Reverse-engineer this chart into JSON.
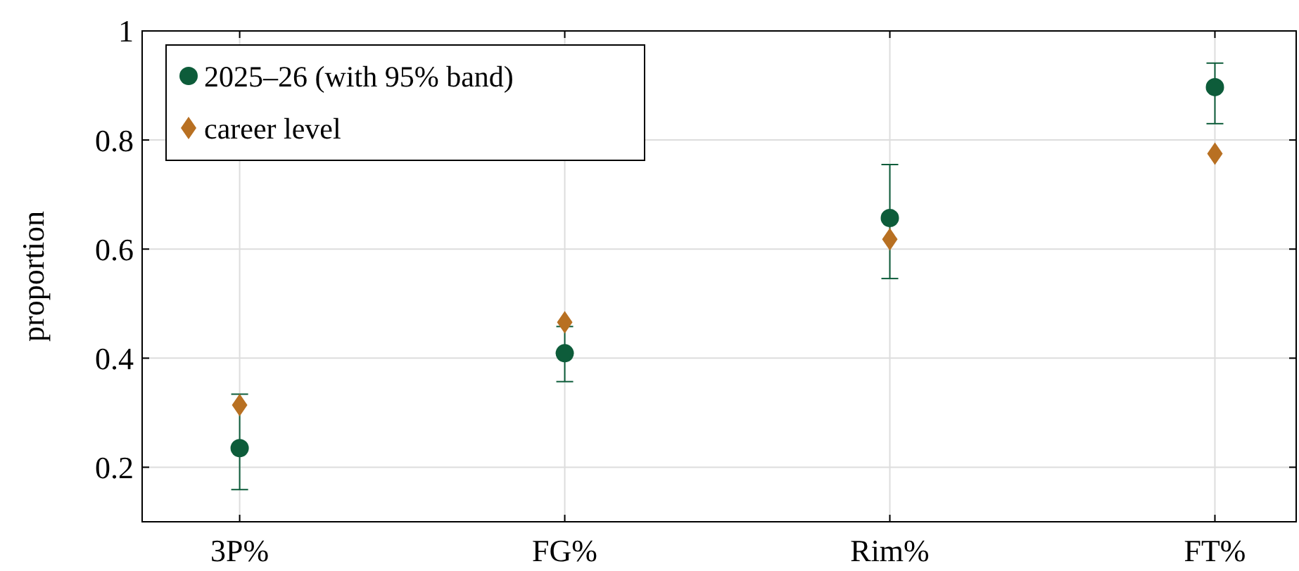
{
  "chart_data": {
    "type": "scatter",
    "ylabel": "proportion",
    "categories": [
      "3P%",
      "FG%",
      "Rim%",
      "FT%"
    ],
    "series": [
      {
        "name": "2025–26 (with 95% band)",
        "color": "#0d5c3a",
        "marker": "circle",
        "values": [
          0.235,
          0.409,
          0.657,
          0.897
        ],
        "errors": [
          [
            0.159,
            0.334
          ],
          [
            0.357,
            0.458
          ],
          [
            0.546,
            0.755
          ],
          [
            0.83,
            0.941
          ]
        ]
      },
      {
        "name": "career level",
        "color": "#b87022",
        "marker": "diamond",
        "values": [
          0.314,
          0.466,
          0.618,
          0.775
        ]
      }
    ],
    "ylim": [
      0.1,
      1
    ],
    "yticks": [
      {
        "value": 0.2,
        "label": "0.2"
      },
      {
        "value": 0.4,
        "label": "0.4"
      },
      {
        "value": 0.6,
        "label": "0.6"
      },
      {
        "value": 0.8,
        "label": "0.8"
      },
      {
        "value": 1,
        "label": "1"
      }
    ],
    "grid": true,
    "legend": "top left"
  }
}
